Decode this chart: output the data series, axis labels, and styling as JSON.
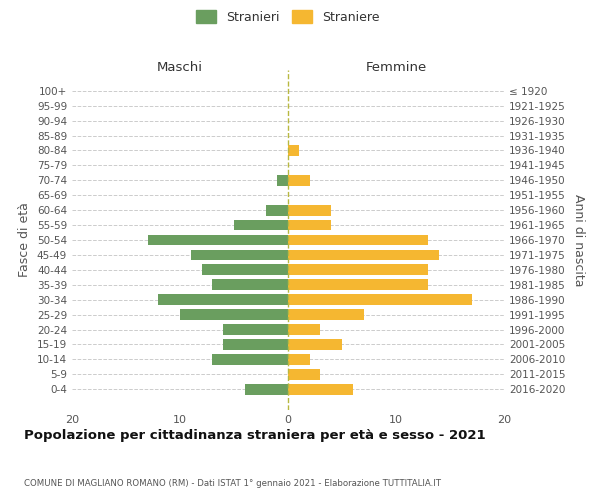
{
  "age_groups": [
    "100+",
    "95-99",
    "90-94",
    "85-89",
    "80-84",
    "75-79",
    "70-74",
    "65-69",
    "60-64",
    "55-59",
    "50-54",
    "45-49",
    "40-44",
    "35-39",
    "30-34",
    "25-29",
    "20-24",
    "15-19",
    "10-14",
    "5-9",
    "0-4"
  ],
  "birth_years": [
    "≤ 1920",
    "1921-1925",
    "1926-1930",
    "1931-1935",
    "1936-1940",
    "1941-1945",
    "1946-1950",
    "1951-1955",
    "1956-1960",
    "1961-1965",
    "1966-1970",
    "1971-1975",
    "1976-1980",
    "1981-1985",
    "1986-1990",
    "1991-1995",
    "1996-2000",
    "2001-2005",
    "2006-2010",
    "2011-2015",
    "2016-2020"
  ],
  "males": [
    0,
    0,
    0,
    0,
    0,
    0,
    1,
    0,
    2,
    5,
    13,
    9,
    8,
    7,
    12,
    10,
    6,
    6,
    7,
    0,
    4
  ],
  "females": [
    0,
    0,
    0,
    0,
    1,
    0,
    2,
    0,
    4,
    4,
    13,
    14,
    13,
    13,
    17,
    7,
    3,
    5,
    2,
    3,
    6
  ],
  "male_color": "#6a9e5f",
  "female_color": "#f5b731",
  "title": "Popolazione per cittadinanza straniera per età e sesso - 2021",
  "subtitle": "COMUNE DI MAGLIANO ROMANO (RM) - Dati ISTAT 1° gennaio 2021 - Elaborazione TUTTITALIA.IT",
  "xlabel_left": "Maschi",
  "xlabel_right": "Femmine",
  "ylabel_left": "Fasce di età",
  "ylabel_right": "Anni di nascita",
  "legend_stranieri": "Stranieri",
  "legend_straniere": "Straniere",
  "xlim": 20,
  "background_color": "#ffffff",
  "grid_color": "#cccccc"
}
